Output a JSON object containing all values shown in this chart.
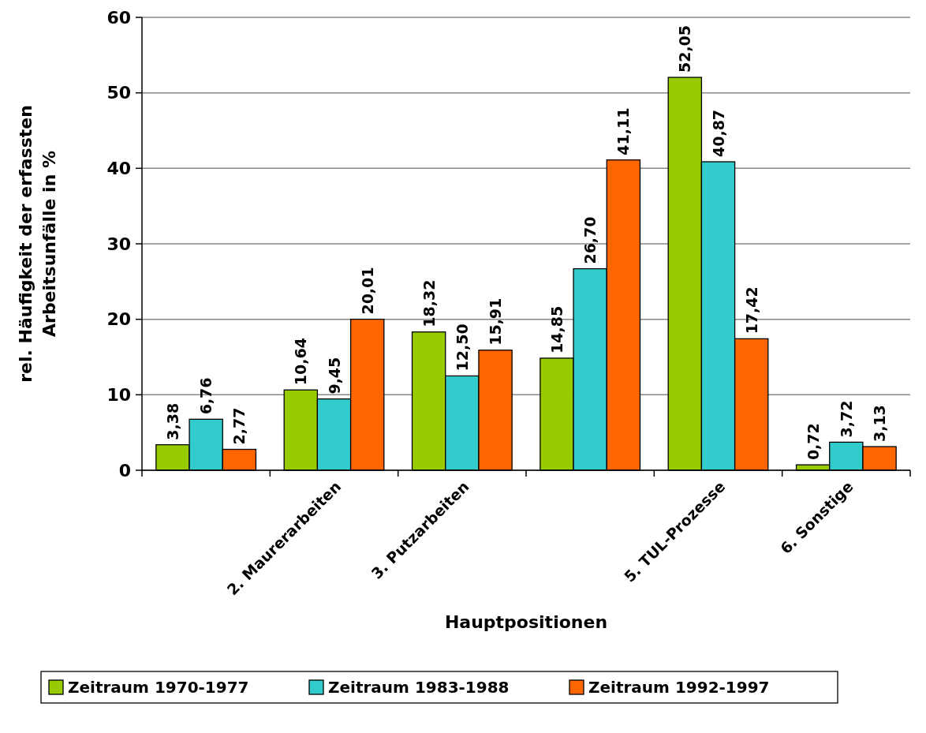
{
  "chart_data": {
    "type": "bar",
    "xlabel": "Hauptpositionen",
    "ylabel": "rel. Häufigkeit der erfassten\nArbeitsunfälle in %",
    "categories": [
      null,
      "2. Maurerarbeiten",
      "3. Putzarbeiten",
      null,
      "5. TUL-Prozesse",
      "6. Sonstige"
    ],
    "series": [
      {
        "name": "Zeitraum 1970-1977",
        "color": "#99cc00",
        "values": [
          3.38,
          10.64,
          18.32,
          14.85,
          52.05,
          0.72
        ],
        "value_labels": [
          "3,38",
          "10,64",
          "18,32",
          "14,85",
          "52,05",
          "0,72"
        ]
      },
      {
        "name": "Zeitraum 1983-1988",
        "color": "#33cccc",
        "values": [
          6.76,
          9.45,
          12.5,
          26.7,
          40.87,
          3.72
        ],
        "value_labels": [
          "6,76",
          "9,45",
          "12,50",
          "26,70",
          "40,87",
          "3,72"
        ]
      },
      {
        "name": "Zeitraum 1992-1997",
        "color": "#ff6600",
        "values": [
          2.77,
          20.01,
          15.91,
          41.11,
          17.42,
          3.13
        ],
        "value_labels": [
          "2,77",
          "20,01",
          "15,91",
          "41,11",
          "17,42",
          "3,13"
        ]
      }
    ],
    "ylim": [
      0,
      60
    ],
    "yticks": [
      0,
      10,
      20,
      30,
      40,
      50,
      60
    ],
    "grid": "y",
    "legend": "bottom"
  }
}
